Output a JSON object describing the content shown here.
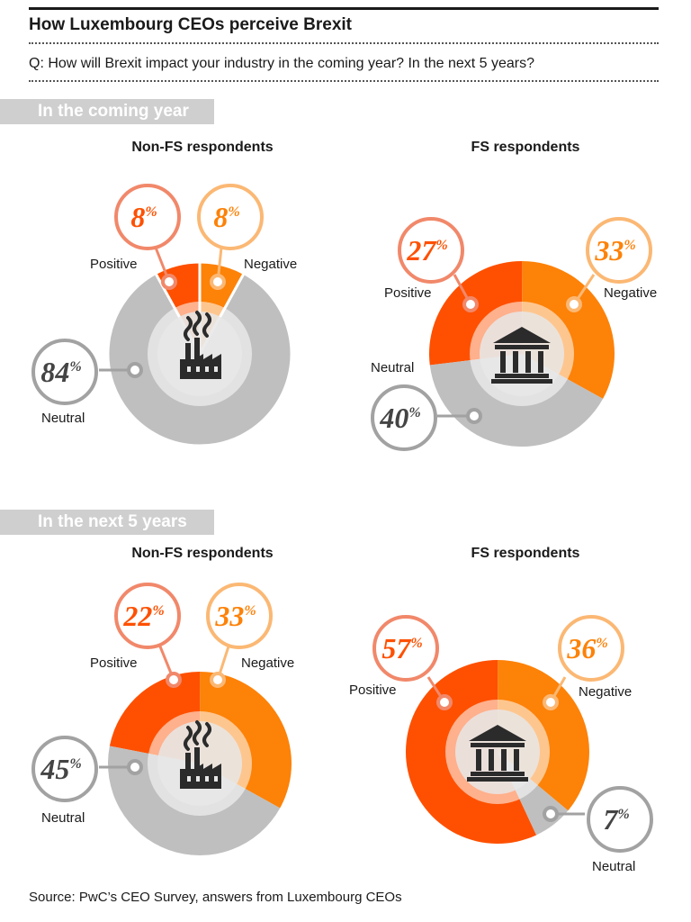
{
  "title": "How Luxembourg CEOs perceive Brexit",
  "question": "Q: How will Brexit impact your industry in the coming year? In the next 5 years?",
  "source": "Source: PwC’s CEO Survey, answers from Luxembourg CEOs",
  "colors": {
    "positive": "#fe5000",
    "negative": "#fd8208",
    "neutral": "#bfbfbf",
    "positive_bubble": "#f1886a",
    "negative_bubble": "#fbb874",
    "neutral_bubble": "#a2a2a2",
    "center": "#e7e7e7",
    "band": "#cfcfcf",
    "icon": "#2b2b2b"
  },
  "sections": [
    {
      "label": "In the coming year"
    },
    {
      "label": "In the next 5 years"
    }
  ],
  "chart_data": [
    {
      "type": "pie",
      "title": "Non-FS respondents",
      "section": "In the coming year",
      "icon": "factory-icon",
      "slices": [
        {
          "label": "Positive",
          "value": 8
        },
        {
          "label": "Negative",
          "value": 8
        },
        {
          "label": "Neutral",
          "value": 84
        }
      ]
    },
    {
      "type": "pie",
      "title": "FS respondents",
      "section": "In the coming year",
      "icon": "bank-icon",
      "slices": [
        {
          "label": "Positive",
          "value": 27
        },
        {
          "label": "Negative",
          "value": 33
        },
        {
          "label": "Neutral",
          "value": 40
        }
      ]
    },
    {
      "type": "pie",
      "title": "Non-FS respondents",
      "section": "In the next 5 years",
      "icon": "factory-icon",
      "slices": [
        {
          "label": "Positive",
          "value": 22
        },
        {
          "label": "Negative",
          "value": 33
        },
        {
          "label": "Neutral",
          "value": 45
        }
      ]
    },
    {
      "type": "pie",
      "title": "FS respondents",
      "section": "In the next 5 years",
      "icon": "bank-icon",
      "slices": [
        {
          "label": "Positive",
          "value": 57
        },
        {
          "label": "Negative",
          "value": 36
        },
        {
          "label": "Neutral",
          "value": 7
        }
      ]
    }
  ],
  "percent_sign": "%"
}
